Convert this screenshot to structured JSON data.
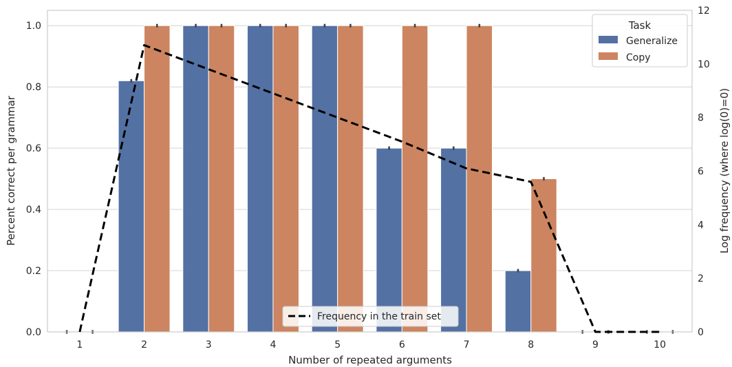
{
  "chart_data": {
    "type": "bar",
    "xlabel": "Number of repeated arguments",
    "ylabel": "Percent correct per grammar",
    "y2label": "Log frequency (where log(0)=0)",
    "categories": [
      "1",
      "2",
      "3",
      "4",
      "5",
      "6",
      "7",
      "8",
      "9",
      "10"
    ],
    "ylim": [
      0,
      1.05
    ],
    "yticks": [
      "0.0",
      "0.2",
      "0.4",
      "0.6",
      "0.8",
      "1.0"
    ],
    "y2lim": [
      0,
      12
    ],
    "y2ticks": [
      "0",
      "2",
      "4",
      "6",
      "8",
      "10",
      "12"
    ],
    "grid": true,
    "legend": {
      "title": "Task",
      "placement": "top-right",
      "entries": [
        "Generalize",
        "Copy"
      ]
    },
    "line_legend": {
      "label": "Frequency in the train set",
      "placement": "bottom-center"
    },
    "series": [
      {
        "name": "Generalize",
        "color": "#5471a4",
        "values": [
          0,
          0.82,
          1.0,
          1.0,
          1.0,
          0.6,
          0.6,
          0.2,
          0,
          0
        ]
      },
      {
        "name": "Copy",
        "color": "#cc8560",
        "values": [
          0,
          1.0,
          1.0,
          1.0,
          1.0,
          1.0,
          1.0,
          0.5,
          0,
          0
        ]
      }
    ],
    "line_series": {
      "name": "Frequency in the train set",
      "axis": "right",
      "color": "#000000",
      "style": "dashed",
      "values": [
        0,
        10.7,
        9.8,
        8.9,
        8.0,
        7.1,
        6.1,
        5.6,
        0,
        0
      ]
    }
  }
}
